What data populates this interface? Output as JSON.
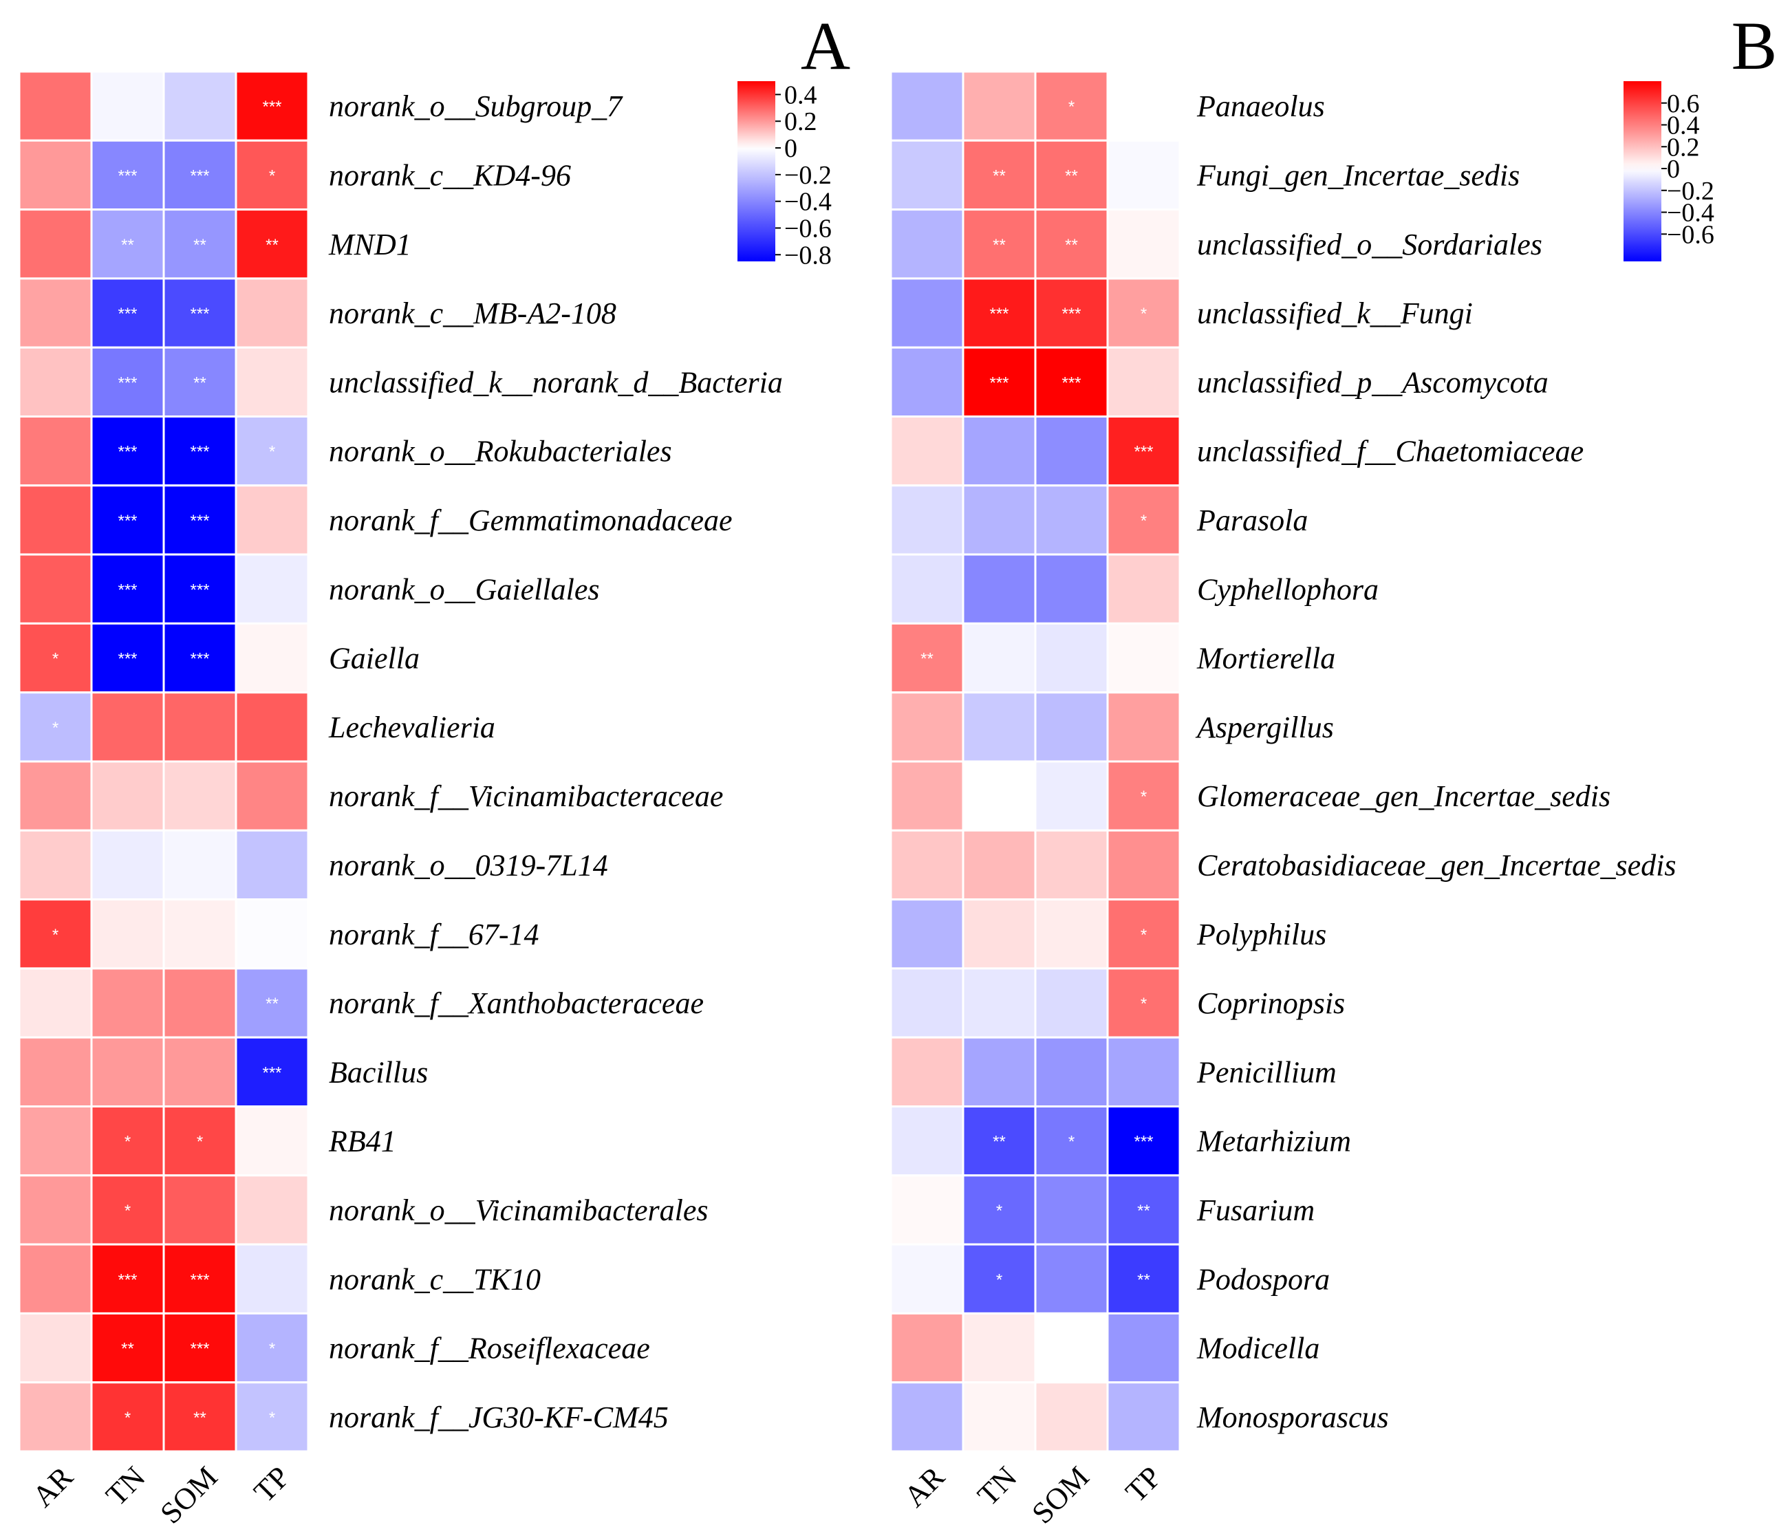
{
  "chart_data": [
    {
      "type": "heatmap",
      "panel_label": "A",
      "columns": [
        "AR",
        "TN",
        "SOM",
        "TP"
      ],
      "rows": [
        "norank_o__Subgroup_7",
        "norank_c__KD4-96",
        "MND1",
        "norank_c__MB-A2-108",
        "unclassified_k__norank_d__Bacteria",
        "norank_o__Rokubacteriales",
        "norank_f__Gemmatimonadaceae",
        "norank_o__Gaiellales",
        "Gaiella",
        "Lechevalieria",
        "norank_f__Vicinamibacteraceae",
        "norank_o__0319-7L14",
        "norank_f__67-14",
        "norank_f__Xanthobacteraceae",
        "Bacillus",
        "RB41",
        "norank_o__Vicinamibacterales",
        "norank_c__TK10",
        "norank_f__Roseiflexaceae",
        "norank_f__JG30-KF-CM45"
      ],
      "values": [
        [
          0.28,
          -0.03,
          -0.15,
          0.48
        ],
        [
          0.2,
          -0.4,
          -0.42,
          0.33
        ],
        [
          0.28,
          -0.3,
          -0.35,
          0.45
        ],
        [
          0.18,
          -0.65,
          -0.6,
          0.12
        ],
        [
          0.12,
          -0.45,
          -0.4,
          0.06
        ],
        [
          0.26,
          -0.85,
          -0.85,
          -0.2
        ],
        [
          0.32,
          -0.85,
          -0.85,
          0.1
        ],
        [
          0.32,
          -0.85,
          -0.85,
          -0.06
        ],
        [
          0.34,
          -0.85,
          -0.85,
          0.02
        ],
        [
          -0.22,
          0.3,
          0.3,
          0.32
        ],
        [
          0.2,
          0.1,
          0.08,
          0.24
        ],
        [
          0.1,
          -0.06,
          -0.03,
          -0.2
        ],
        [
          0.38,
          0.04,
          0.03,
          -0.01
        ],
        [
          0.05,
          0.22,
          0.24,
          -0.32
        ],
        [
          0.2,
          0.2,
          0.2,
          -0.75
        ],
        [
          0.18,
          0.36,
          0.36,
          0.02
        ],
        [
          0.2,
          0.36,
          0.32,
          0.08
        ],
        [
          0.22,
          0.48,
          0.48,
          -0.08
        ],
        [
          0.06,
          0.48,
          0.48,
          -0.25
        ],
        [
          0.14,
          0.4,
          0.4,
          -0.2
        ]
      ],
      "significance": [
        [
          "",
          "",
          "",
          "***"
        ],
        [
          "",
          "***",
          "***",
          "*"
        ],
        [
          "",
          "**",
          "**",
          "**"
        ],
        [
          "",
          "***",
          "***",
          ""
        ],
        [
          "",
          "***",
          "**",
          ""
        ],
        [
          "",
          "***",
          "***",
          "*"
        ],
        [
          "",
          "***",
          "***",
          ""
        ],
        [
          "",
          "***",
          "***",
          ""
        ],
        [
          "*",
          "***",
          "***",
          ""
        ],
        [
          "*",
          "",
          "",
          ""
        ],
        [
          "",
          "",
          "",
          ""
        ],
        [
          "",
          "",
          "",
          ""
        ],
        [
          "*",
          "",
          "",
          ""
        ],
        [
          "",
          "",
          "",
          "**"
        ],
        [
          "",
          "",
          "",
          "***"
        ],
        [
          "",
          "*",
          "*",
          ""
        ],
        [
          "",
          "*",
          "",
          ""
        ],
        [
          "",
          "***",
          "***",
          ""
        ],
        [
          "",
          "**",
          "***",
          "*"
        ],
        [
          "",
          "*",
          "**",
          "*"
        ]
      ],
      "color_scale": {
        "min": -0.85,
        "max": 0.5,
        "low_color": "#0000ff",
        "mid_color": "#ffffff",
        "high_color": "#ff0000",
        "ticks": [
          0.4,
          0.2,
          0,
          -0.2,
          -0.4,
          -0.6,
          -0.8
        ],
        "tick_labels": [
          "0.4",
          "0.2",
          "0",
          "−0.2",
          "−0.4",
          "−0.6",
          "−0.8"
        ]
      }
    },
    {
      "type": "heatmap",
      "panel_label": "B",
      "columns": [
        "AR",
        "TN",
        "SOM",
        "TP"
      ],
      "rows": [
        "Panaeolus",
        "Fungi_gen_Incertae_sedis",
        "unclassified_o__Sordariales",
        "unclassified_k__Fungi",
        "unclassified_p__Ascomycota",
        "unclassified_f__Chaetomiaceae",
        "Parasola",
        "Cyphellophora",
        "Mortierella",
        "Aspergillus",
        "Glomeraceae_gen_Incertae_sedis",
        "Ceratobasidiaceae_gen_Incertae_sedis",
        "Polyphilus",
        "Coprinopsis",
        "Penicillium",
        "Metarhizium",
        "Fusarium",
        "Podospora",
        "Modicella",
        "Monosporascus"
      ],
      "values": [
        [
          -0.25,
          0.25,
          0.4,
          0.0
        ],
        [
          -0.18,
          0.45,
          0.45,
          -0.02
        ],
        [
          -0.25,
          0.45,
          0.45,
          0.03
        ],
        [
          -0.35,
          0.72,
          0.65,
          0.3
        ],
        [
          -0.3,
          0.8,
          0.8,
          0.12
        ],
        [
          0.12,
          -0.3,
          -0.38,
          0.7
        ],
        [
          -0.12,
          -0.25,
          -0.25,
          0.4
        ],
        [
          -0.1,
          -0.4,
          -0.4,
          0.15
        ],
        [
          0.4,
          -0.04,
          -0.08,
          0.02
        ],
        [
          0.25,
          -0.18,
          -0.22,
          0.3
        ],
        [
          0.25,
          0.0,
          -0.06,
          0.4
        ],
        [
          0.18,
          0.22,
          0.15,
          0.35
        ],
        [
          -0.25,
          0.1,
          0.06,
          0.45
        ],
        [
          -0.1,
          -0.08,
          -0.12,
          0.45
        ],
        [
          0.18,
          -0.3,
          -0.35,
          -0.3
        ],
        [
          -0.08,
          -0.6,
          -0.45,
          -0.85
        ],
        [
          0.02,
          -0.5,
          -0.4,
          -0.55
        ],
        [
          -0.03,
          -0.55,
          -0.4,
          -0.65
        ],
        [
          0.3,
          0.06,
          0.0,
          -0.35
        ],
        [
          -0.25,
          0.03,
          0.1,
          -0.25
        ]
      ],
      "significance": [
        [
          "",
          "",
          "*",
          ""
        ],
        [
          "",
          "**",
          "**",
          ""
        ],
        [
          "",
          "**",
          "**",
          ""
        ],
        [
          "",
          "***",
          "***",
          "*"
        ],
        [
          "",
          "***",
          "***",
          ""
        ],
        [
          "",
          "",
          "",
          "***"
        ],
        [
          "",
          "",
          "",
          "*"
        ],
        [
          "",
          "",
          "",
          ""
        ],
        [
          "**",
          "",
          "",
          ""
        ],
        [
          "",
          "",
          "",
          ""
        ],
        [
          "",
          "",
          "",
          "*"
        ],
        [
          "",
          "",
          "",
          ""
        ],
        [
          "",
          "",
          "",
          "*"
        ],
        [
          "",
          "",
          "",
          "*"
        ],
        [
          "",
          "",
          "",
          ""
        ],
        [
          "",
          "**",
          "*",
          "***"
        ],
        [
          "",
          "*",
          "",
          "**"
        ],
        [
          "",
          "*",
          "",
          "**"
        ],
        [
          "",
          "",
          "",
          ""
        ],
        [
          "",
          "",
          "",
          ""
        ]
      ],
      "color_scale": {
        "min": -0.85,
        "max": 0.8,
        "low_color": "#0000ff",
        "mid_color": "#ffffff",
        "high_color": "#ff0000",
        "ticks": [
          0.6,
          0.4,
          0.2,
          0,
          -0.2,
          -0.4,
          -0.6
        ],
        "tick_labels": [
          "0.6",
          "0.4",
          "0.2",
          "0",
          "−0.2",
          "−0.4",
          "−0.6"
        ]
      }
    }
  ]
}
